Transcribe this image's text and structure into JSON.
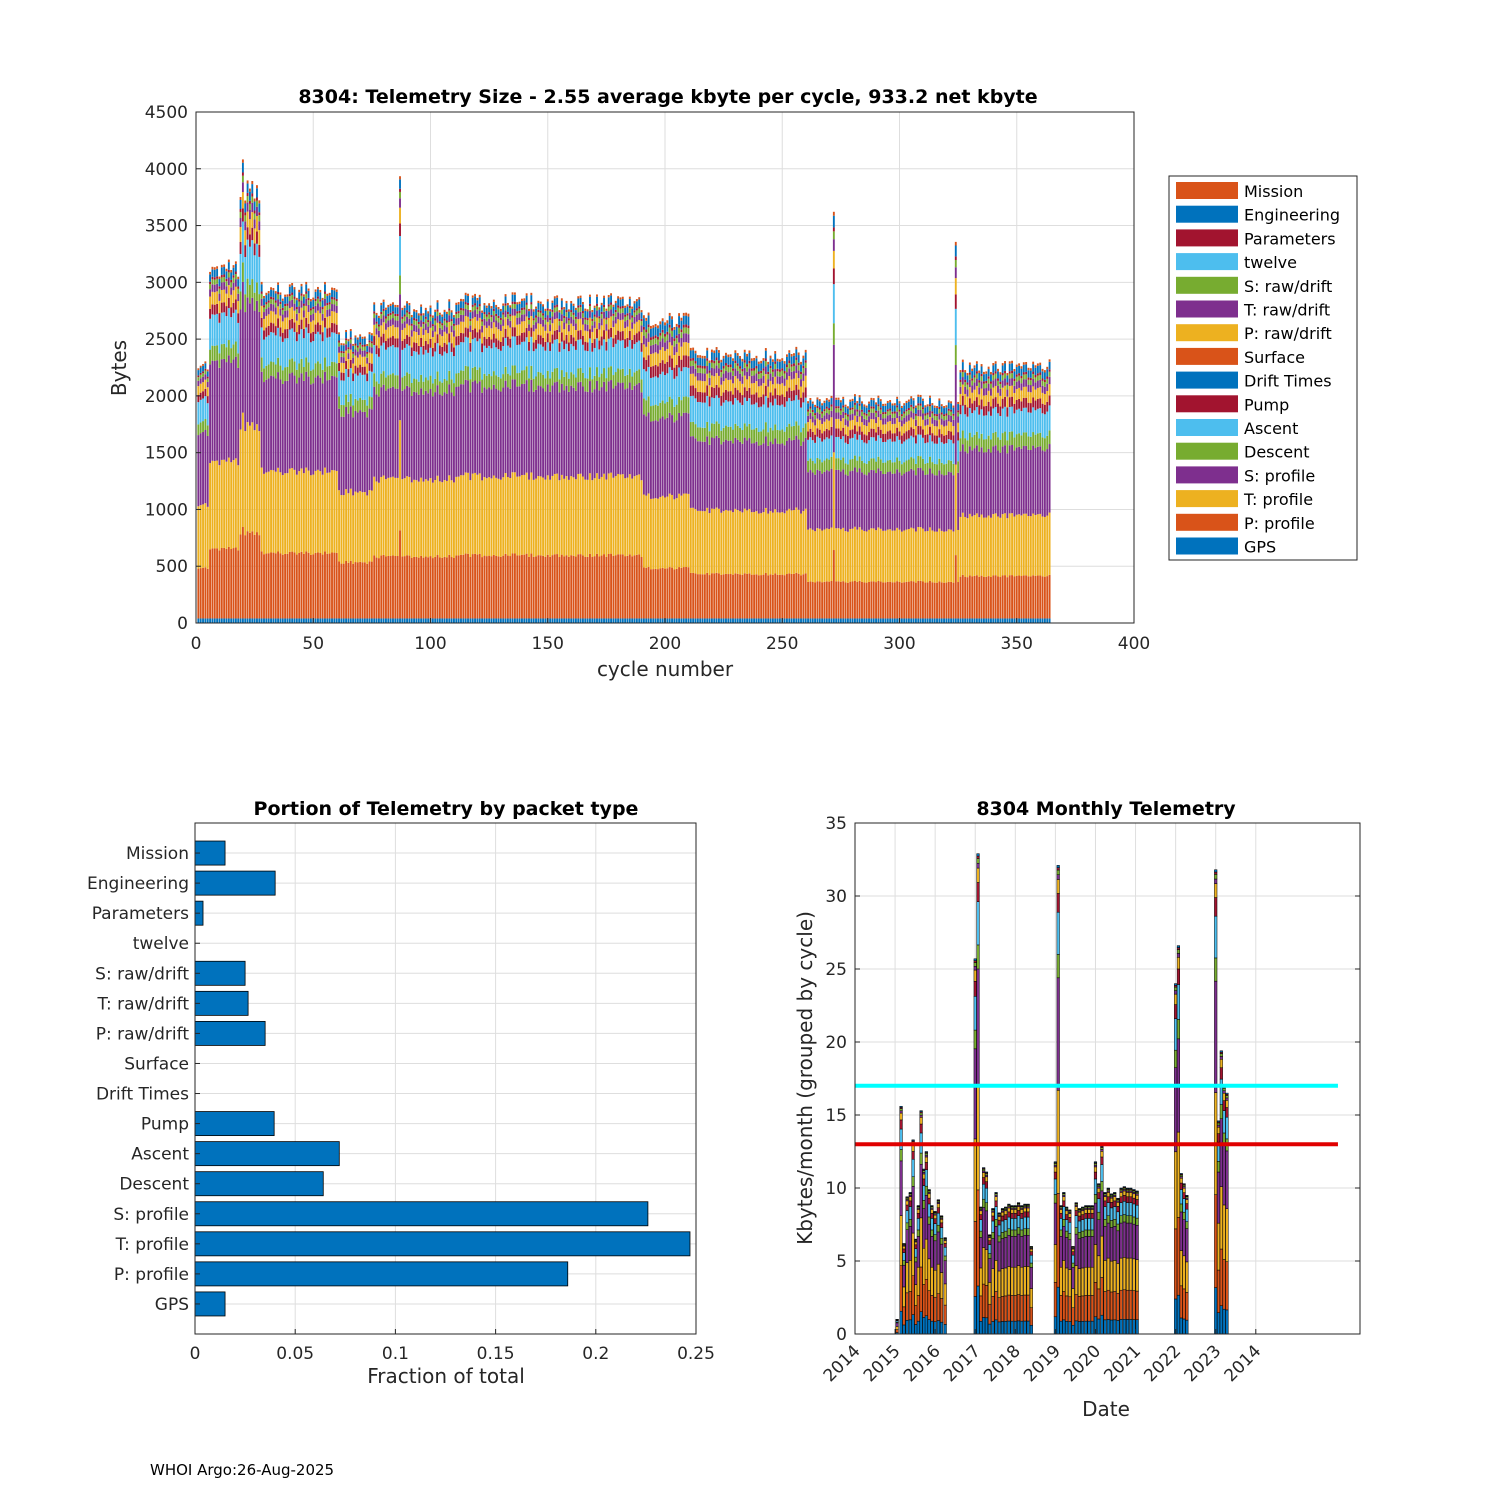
{
  "categories": [
    "Mission",
    "Engineering",
    "Parameters",
    "twelve",
    "S: raw/drift",
    "T: raw/drift",
    "P: raw/drift",
    "Surface",
    "Drift Times",
    "Pump",
    "Ascent",
    "Descent",
    "S: profile",
    "T: profile",
    "P: profile",
    "GPS"
  ],
  "colors": {
    "Mission": "#D95319",
    "Engineering": "#0072BD",
    "Parameters": "#A2142F",
    "twelve": "#4DBEEE",
    "S: raw/drift": "#77AC30",
    "T: raw/drift": "#7E2F8E",
    "P: raw/drift": "#EDB120",
    "Surface": "#D95319",
    "Drift Times": "#0072BD",
    "Pump": "#A2142F",
    "Ascent": "#4DBEEE",
    "Descent": "#77AC30",
    "S: profile": "#7E2F8E",
    "T: profile": "#EDB120",
    "P: profile": "#D95319",
    "GPS": "#0072BD",
    "bar": "#0072BD",
    "cyan_line": "#00FFFF",
    "red_line": "#E00000"
  },
  "footer": "WHOI Argo:26-Aug-2025",
  "chart_data": [
    {
      "id": "telemetry_size",
      "type": "bar",
      "stacked": true,
      "title": "8304: Telemetry Size - 2.55 average kbyte per cycle,  933.2 net kbyte",
      "xlabel": "cycle number",
      "ylabel": "Bytes",
      "xlim": [
        0,
        400
      ],
      "ylim": [
        0,
        4500
      ],
      "xticks": [
        0,
        50,
        100,
        150,
        200,
        250,
        300,
        350,
        400
      ],
      "yticks": [
        0,
        500,
        1000,
        1500,
        2000,
        2500,
        3000,
        3500,
        4000,
        4500
      ],
      "grid": true,
      "legend": {
        "position": "outside-right",
        "order_top_to_bottom": [
          "Mission",
          "Engineering",
          "Parameters",
          "twelve",
          "S: raw/drift",
          "T: raw/drift",
          "P: raw/drift",
          "Surface",
          "Drift Times",
          "Pump",
          "Ascent",
          "Descent",
          "S: profile",
          "T: profile",
          "P: profile",
          "GPS"
        ]
      },
      "cycles": [
        1,
        364
      ],
      "approx_total_bytes_by_cycle_range": [
        {
          "from": 1,
          "to": 5,
          "total": 2200
        },
        {
          "from": 6,
          "to": 18,
          "total": 3050
        },
        {
          "from": 19,
          "to": 27,
          "total": 3700
        },
        {
          "from": 28,
          "to": 60,
          "total": 2850
        },
        {
          "from": 61,
          "to": 75,
          "total": 2450
        },
        {
          "from": 76,
          "to": 110,
          "total": 2700
        },
        {
          "from": 111,
          "to": 140,
          "total": 2750
        },
        {
          "from": 141,
          "to": 190,
          "total": 2750
        },
        {
          "from": 191,
          "to": 210,
          "total": 2600
        },
        {
          "from": 211,
          "to": 260,
          "total": 2300
        },
        {
          "from": 261,
          "to": 325,
          "total": 1900
        },
        {
          "from": 326,
          "to": 364,
          "total": 2200
        }
      ],
      "approx_layer_bytes_by_cycle_range": [
        {
          "from": 1,
          "to": 190,
          "GPS": 40,
          "P: profile": 560,
          "T: profile": 700,
          "S: profile": 800,
          "Descent": 120,
          "Ascent": 250,
          "Pump": 80,
          "P: raw/drift": 100,
          "T: raw/drift": 60,
          "S: raw/drift": 40,
          "Parameters": 20,
          "Engineering": 60,
          "Mission": 20
        },
        {
          "from": 191,
          "to": 364,
          "GPS": 40,
          "P: profile": 350,
          "T: profile": 500,
          "S: profile": 550,
          "Descent": 110,
          "Ascent": 200,
          "Pump": 80,
          "P: raw/drift": 90,
          "T: raw/drift": 60,
          "S: raw/drift": 40,
          "Parameters": 20,
          "Engineering": 60,
          "Mission": 20
        }
      ],
      "spikes": [
        {
          "cycle": 20,
          "total": 4100
        },
        {
          "cycle": 87,
          "total": 3950
        },
        {
          "cycle": 272,
          "total": 3650
        },
        {
          "cycle": 324,
          "total": 3380
        }
      ]
    },
    {
      "id": "portion_by_packet",
      "type": "bar",
      "orientation": "horizontal",
      "title": "Portion of Telemetry by packet type",
      "xlabel": "Fraction of total",
      "ylabel": "",
      "xlim": [
        0,
        0.25
      ],
      "xticks": [
        0,
        0.05,
        0.1,
        0.15,
        0.2,
        0.25
      ],
      "grid": true,
      "categories": [
        "Mission",
        "Engineering",
        "Parameters",
        "twelve",
        "S: raw/drift",
        "T: raw/drift",
        "P: raw/drift",
        "Surface",
        "Drift Times",
        "Pump",
        "Ascent",
        "Descent",
        "S: profile",
        "T: profile",
        "P: profile",
        "GPS"
      ],
      "values": [
        0.015,
        0.04,
        0.004,
        0.0,
        0.025,
        0.0265,
        0.035,
        0.0,
        0.0,
        0.0395,
        0.072,
        0.064,
        0.226,
        0.247,
        0.186,
        0.015
      ]
    },
    {
      "id": "monthly_telemetry",
      "type": "bar",
      "stacked": true,
      "title": "8304 Monthly Telemetry",
      "xlabel": "Date",
      "ylabel": "Kbytes/month (grouped by cycle)",
      "ylim": [
        0,
        35
      ],
      "yticks": [
        0,
        5,
        10,
        15,
        20,
        25,
        30,
        35
      ],
      "xticklabels": [
        "2014",
        "2015",
        "2016",
        "2017",
        "2018",
        "2019",
        "2020",
        "2021",
        "2022",
        "2023",
        "2014"
      ],
      "grid": true,
      "hlines": [
        {
          "y": 17,
          "color": "cyan"
        },
        {
          "y": 13,
          "color": "red"
        }
      ],
      "months": [
        {
          "x": 1.05,
          "total": 1.0
        },
        {
          "x": 1.15,
          "total": 15.6
        },
        {
          "x": 1.22,
          "total": 6.2
        },
        {
          "x": 1.3,
          "total": 9.4
        },
        {
          "x": 1.38,
          "total": 9.7
        },
        {
          "x": 1.45,
          "total": 13.3
        },
        {
          "x": 1.52,
          "total": 6.5
        },
        {
          "x": 1.58,
          "total": 8.8
        },
        {
          "x": 1.65,
          "total": 15.3
        },
        {
          "x": 1.72,
          "total": 11.3
        },
        {
          "x": 1.78,
          "total": 12.5
        },
        {
          "x": 1.85,
          "total": 9.9
        },
        {
          "x": 1.92,
          "total": 8.8
        },
        {
          "x": 2.0,
          "total": 8.4
        },
        {
          "x": 2.08,
          "total": 9.2
        },
        {
          "x": 2.16,
          "total": 8.1
        },
        {
          "x": 2.25,
          "total": 6.6
        },
        {
          "x": 3.0,
          "total": 25.7
        },
        {
          "x": 3.07,
          "total": 32.9
        },
        {
          "x": 3.14,
          "total": 8.7
        },
        {
          "x": 3.21,
          "total": 11.4
        },
        {
          "x": 3.28,
          "total": 11.1
        },
        {
          "x": 3.36,
          "total": 6.8
        },
        {
          "x": 3.44,
          "total": 8.6
        },
        {
          "x": 3.52,
          "total": 9.7
        },
        {
          "x": 3.6,
          "total": 8.3
        },
        {
          "x": 3.68,
          "total": 8.6
        },
        {
          "x": 3.76,
          "total": 8.7
        },
        {
          "x": 3.84,
          "total": 8.9
        },
        {
          "x": 3.92,
          "total": 8.8
        },
        {
          "x": 4.0,
          "total": 8.8
        },
        {
          "x": 4.08,
          "total": 9.0
        },
        {
          "x": 4.16,
          "total": 8.8
        },
        {
          "x": 4.24,
          "total": 8.9
        },
        {
          "x": 4.32,
          "total": 8.9
        },
        {
          "x": 4.4,
          "total": 6.0
        },
        {
          "x": 5.0,
          "total": 11.8
        },
        {
          "x": 5.07,
          "total": 32.1
        },
        {
          "x": 5.14,
          "total": 8.8
        },
        {
          "x": 5.21,
          "total": 9.7
        },
        {
          "x": 5.28,
          "total": 8.7
        },
        {
          "x": 5.36,
          "total": 8.5
        },
        {
          "x": 5.44,
          "total": 6.0
        },
        {
          "x": 5.52,
          "total": 9.0
        },
        {
          "x": 5.6,
          "total": 8.6
        },
        {
          "x": 5.68,
          "total": 8.7
        },
        {
          "x": 5.76,
          "total": 8.8
        },
        {
          "x": 5.84,
          "total": 8.8
        },
        {
          "x": 5.92,
          "total": 8.8
        },
        {
          "x": 6.0,
          "total": 11.8
        },
        {
          "x": 6.08,
          "total": 10.3
        },
        {
          "x": 6.16,
          "total": 12.9
        },
        {
          "x": 6.24,
          "total": 9.7
        },
        {
          "x": 6.32,
          "total": 10.0
        },
        {
          "x": 6.4,
          "total": 9.6
        },
        {
          "x": 6.48,
          "total": 9.7
        },
        {
          "x": 6.56,
          "total": 9.3
        },
        {
          "x": 6.64,
          "total": 10.0
        },
        {
          "x": 6.72,
          "total": 10.1
        },
        {
          "x": 6.8,
          "total": 10.0
        },
        {
          "x": 6.88,
          "total": 10.0
        },
        {
          "x": 6.96,
          "total": 9.9
        },
        {
          "x": 7.04,
          "total": 9.8
        },
        {
          "x": 8.0,
          "total": 24.0
        },
        {
          "x": 8.07,
          "total": 26.6
        },
        {
          "x": 8.14,
          "total": 11.0
        },
        {
          "x": 8.21,
          "total": 10.3
        },
        {
          "x": 8.28,
          "total": 9.5
        },
        {
          "x": 9.0,
          "total": 31.8
        },
        {
          "x": 9.07,
          "total": 14.6
        },
        {
          "x": 9.14,
          "total": 19.4
        },
        {
          "x": 9.21,
          "total": 17.0
        },
        {
          "x": 9.28,
          "total": 16.5
        }
      ],
      "month_layer_fractions": {
        "GPS": 0.1,
        "P: profile": 0.2,
        "T: profile": 0.22,
        "S: profile": 0.24,
        "Descent": 0.05,
        "Ascent": 0.09,
        "Pump": 0.04,
        "P: raw/drift": 0.03,
        "T: raw/drift": 0.01,
        "S: raw/drift": 0.01,
        "Parameters": 0.005,
        "Engineering": 0.005
      }
    }
  ]
}
